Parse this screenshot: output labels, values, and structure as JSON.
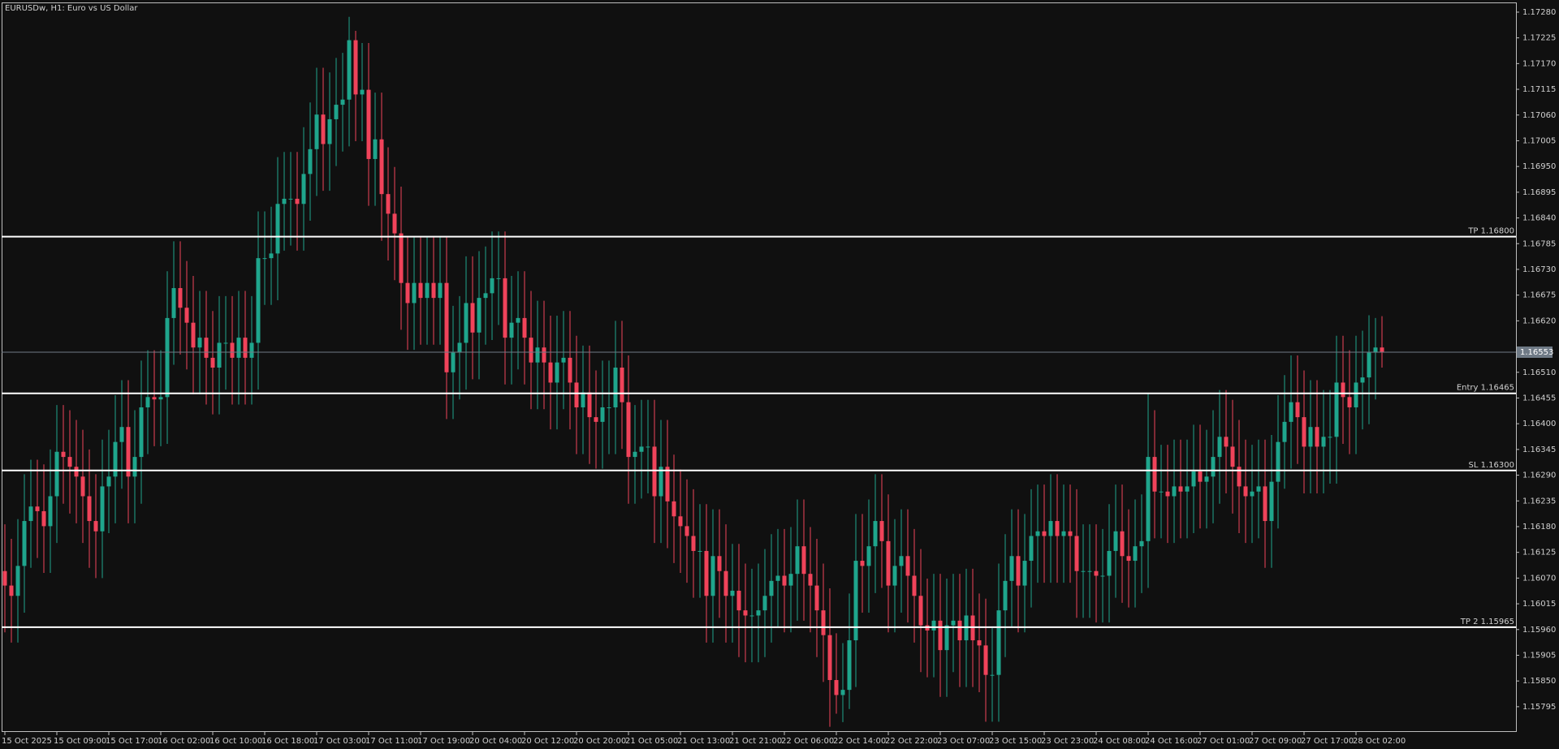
{
  "chart_data": {
    "type": "candlestick",
    "title": "EURUSDw, H1:  Euro vs US Dollar",
    "up_color": "#1fa58c",
    "down_color": "#f0435a",
    "categories": [
      "15 Oct 2025",
      null,
      null,
      null,
      null,
      null,
      null,
      null,
      "15 Oct 09:00",
      null,
      null,
      null,
      null,
      null,
      null,
      null,
      "15 Oct 17:00",
      null,
      null,
      null,
      null,
      null,
      null,
      null,
      "16 Oct 02:00",
      null,
      null,
      null,
      null,
      null,
      null,
      null,
      "16 Oct 10:00",
      null,
      null,
      null,
      null,
      null,
      null,
      null,
      "16 Oct 18:00",
      null,
      null,
      null,
      null,
      null,
      null,
      null,
      "17 Oct 03:00",
      null,
      null,
      null,
      null,
      null,
      null,
      null,
      "17 Oct 11:00",
      null,
      null,
      null,
      null,
      null,
      null,
      null,
      "17 Oct 19:00",
      null,
      null,
      null,
      null,
      null,
      null,
      null,
      "20 Oct 04:00",
      null,
      null,
      null,
      null,
      null,
      null,
      null,
      "20 Oct 12:00",
      null,
      null,
      null,
      null,
      null,
      null,
      null,
      "20 Oct 20:00",
      null,
      null,
      null,
      null,
      null,
      null,
      null,
      "21 Oct 05:00",
      null,
      null,
      null,
      null,
      null,
      null,
      null,
      "21 Oct 13:00",
      null,
      null,
      null,
      null,
      null,
      null,
      null,
      "21 Oct 21:00",
      null,
      null,
      null,
      null,
      null,
      null,
      null,
      "22 Oct 06:00",
      null,
      null,
      null,
      null,
      null,
      null,
      null,
      "22 Oct 14:00",
      null,
      null,
      null,
      null,
      null,
      null,
      null,
      "22 Oct 22:00",
      null,
      null,
      null,
      null,
      null,
      null,
      null,
      "23 Oct 07:00",
      null,
      null,
      null,
      null,
      null,
      null,
      null,
      "23 Oct 15:00",
      null,
      null,
      null,
      null,
      null,
      null,
      null,
      "23 Oct 23:00",
      null,
      null,
      null,
      null,
      null,
      null,
      null,
      "24 Oct 08:00",
      null,
      null,
      null,
      null,
      null,
      null,
      null,
      "24 Oct 16:00",
      null,
      null,
      null,
      null,
      null,
      null,
      null,
      "27 Oct 01:00",
      null,
      null,
      null,
      null,
      null,
      null,
      null,
      "27 Oct 09:00",
      null,
      null,
      null,
      null,
      null,
      null,
      null,
      "27 Oct 17:00",
      null,
      null,
      null,
      null,
      null,
      null,
      null,
      "28 Oct 02:00",
      null,
      null,
      null,
      null
    ],
    "open": [
      1.16085,
      1.16054,
      1.16032,
      1.16096,
      1.16192,
      1.16223,
      1.16213,
      1.16181,
      1.16245,
      1.1634,
      1.16329,
      1.16308,
      1.16287,
      1.16245,
      1.16192,
      1.1617,
      1.16266,
      1.16287,
      1.16361,
      1.16393,
      1.16287,
      1.16329,
      1.16435,
      1.16457,
      1.16452,
      1.16457,
      1.16626,
      1.1669,
      1.16648,
      1.16616,
      1.16563,
      1.16584,
      1.16541,
      1.1652,
      1.16573,
      1.16573,
      1.16541,
      1.16584,
      1.16541,
      1.16573,
      1.16754,
      1.16754,
      1.16764,
      1.1687,
      1.16881,
      1.16881,
      1.1687,
      1.16934,
      1.16987,
      1.17061,
      1.16998,
      1.17051,
      1.17082,
      1.17093,
      1.1722,
      1.17104,
      1.17114,
      1.16966,
      1.17008,
      1.16891,
      1.16849,
      1.16807,
      1.16701,
      1.16658,
      1.16701,
      1.16669,
      1.16701,
      1.16669,
      1.16701,
      1.1651,
      1.16552,
      1.16573,
      1.16658,
      1.16595,
      1.16669,
      1.16679,
      1.16711,
      1.16711,
      1.16584,
      1.16616,
      1.16626,
      1.16584,
      1.16531,
      1.16563,
      1.16531,
      1.16488,
      1.16531,
      1.16541,
      1.16488,
      1.16435,
      1.16467,
      1.16414,
      1.16404,
      1.16435,
      1.16435,
      1.1652,
      1.16446,
      1.16329,
      1.1634,
      1.16351,
      1.16351,
      1.16245,
      1.16308,
      1.16234,
      1.16202,
      1.16181,
      1.1616,
      1.16128,
      1.16128,
      1.16032,
      1.16117,
      1.16085,
      1.16032,
      1.16043,
      1.16001,
      1.1599,
      1.1599,
      1.16001,
      1.16032,
      1.16064,
      1.16075,
      1.16054,
      1.16079,
      1.16138,
      1.16079,
      1.16054,
      1.16001,
      1.15948,
      1.15852,
      1.1582,
      1.15831,
      1.15937,
      1.16107,
      1.16096,
      1.16138,
      1.16192,
      1.16149,
      1.16054,
      1.16096,
      1.16117,
      1.16075,
      1.16032,
      1.15969,
      1.15958,
      1.15979,
      1.15916,
      1.15969,
      1.15979,
      1.15937,
      1.1599,
      1.15937,
      1.15926,
      1.15863,
      1.15863,
      1.16001,
      1.16064,
      1.16117,
      1.16054,
      1.16107,
      1.1616,
      1.1617,
      1.1616,
      1.16192,
      1.1616,
      1.1617,
      1.1616,
      1.16085,
      1.16085,
      1.16085,
      1.16075,
      1.16075,
      1.16128,
      1.1617,
      1.16117,
      1.16107,
      1.16138,
      1.16149,
      1.16329,
      1.16255,
      1.16255,
      1.16245,
      1.16266,
      1.16255,
      1.16266,
      1.16298,
      1.16276,
      1.16287,
      1.16329,
      1.16372,
      1.16351,
      1.16308,
      1.16266,
      1.16245,
      1.16255,
      1.16266,
      1.16192,
      1.16276,
      1.16361,
      1.16404,
      1.16446,
      1.16414,
      1.16351,
      1.16393,
      1.16351,
      1.16372,
      1.16372,
      1.16488,
      1.16457,
      1.16435,
      1.16488,
      1.16499,
      1.16552,
      1.16563
    ],
    "high": [
      1.16185,
      1.16154,
      1.16196,
      1.16292,
      1.16323,
      1.16323,
      1.16313,
      1.16345,
      1.1644,
      1.1644,
      1.16429,
      1.16408,
      1.16387,
      1.16345,
      1.16292,
      1.16366,
      1.16387,
      1.16461,
      1.16493,
      1.16493,
      1.16429,
      1.16535,
      1.16557,
      1.16557,
      1.16557,
      1.16726,
      1.1679,
      1.1679,
      1.16748,
      1.16716,
      1.16684,
      1.16684,
      1.16641,
      1.16673,
      1.16673,
      1.16673,
      1.16684,
      1.16684,
      1.16673,
      1.16854,
      1.16854,
      1.16864,
      1.1697,
      1.16981,
      1.16981,
      1.16981,
      1.17034,
      1.17087,
      1.17161,
      1.17161,
      1.17151,
      1.17182,
      1.17193,
      1.1727,
      1.1724,
      1.17214,
      1.17214,
      1.17108,
      1.17108,
      1.16991,
      1.16949,
      1.16907,
      1.16801,
      1.16801,
      1.16801,
      1.16801,
      1.16801,
      1.16801,
      1.16801,
      1.16652,
      1.16673,
      1.16758,
      1.16758,
      1.16769,
      1.16779,
      1.16811,
      1.16811,
      1.16811,
      1.16716,
      1.16726,
      1.16726,
      1.16684,
      1.16663,
      1.16663,
      1.16631,
      1.16631,
      1.16641,
      1.16641,
      1.16588,
      1.16567,
      1.16567,
      1.16514,
      1.16535,
      1.16535,
      1.1662,
      1.1662,
      1.16546,
      1.1644,
      1.16451,
      1.16451,
      1.16451,
      1.16408,
      1.16408,
      1.16334,
      1.16302,
      1.16281,
      1.1626,
      1.16228,
      1.16228,
      1.16217,
      1.16217,
      1.16185,
      1.16143,
      1.16143,
      1.16101,
      1.1609,
      1.16101,
      1.16132,
      1.16164,
      1.16175,
      1.16175,
      1.16179,
      1.16238,
      1.16238,
      1.16179,
      1.16154,
      1.16101,
      1.16048,
      1.15952,
      1.15931,
      1.16037,
      1.16207,
      1.16207,
      1.16238,
      1.16292,
      1.16292,
      1.16249,
      1.16196,
      1.16217,
      1.16217,
      1.16175,
      1.16132,
      1.16069,
      1.16079,
      1.16079,
      1.16069,
      1.16079,
      1.16079,
      1.1609,
      1.1609,
      1.16037,
      1.16026,
      1.15963,
      1.16101,
      1.16164,
      1.16217,
      1.16217,
      1.16207,
      1.1626,
      1.1627,
      1.1627,
      1.16292,
      1.16292,
      1.1627,
      1.1627,
      1.1626,
      1.16185,
      1.16185,
      1.16185,
      1.16175,
      1.16228,
      1.1627,
      1.1627,
      1.16217,
      1.16238,
      1.16249,
      1.16465,
      1.16429,
      1.16355,
      1.16355,
      1.16366,
      1.16366,
      1.16366,
      1.16398,
      1.16398,
      1.16387,
      1.16429,
      1.16472,
      1.16472,
      1.16451,
      1.16408,
      1.16366,
      1.16355,
      1.16366,
      1.16366,
      1.16376,
      1.16461,
      1.16504,
      1.16546,
      1.16546,
      1.16514,
      1.16493,
      1.16493,
      1.16472,
      1.16472,
      1.16588,
      1.16588,
      1.16557,
      1.16588,
      1.16599,
      1.16632,
      1.16626,
      1.1663
    ],
    "low": [
      1.15954,
      1.15932,
      1.15932,
      1.15996,
      1.16092,
      1.16113,
      1.16081,
      1.16081,
      1.16145,
      1.16229,
      1.16208,
      1.16187,
      1.16145,
      1.16092,
      1.1607,
      1.1607,
      1.16166,
      1.16187,
      1.16261,
      1.16187,
      1.16187,
      1.16229,
      1.16335,
      1.16352,
      1.16352,
      1.16357,
      1.16526,
      1.16548,
      1.16516,
      1.16463,
      1.16463,
      1.16441,
      1.1642,
      1.1642,
      1.16473,
      1.16441,
      1.16441,
      1.16441,
      1.16441,
      1.16473,
      1.16654,
      1.16654,
      1.16664,
      1.1677,
      1.16781,
      1.1677,
      1.1677,
      1.16834,
      1.16887,
      1.16898,
      1.16898,
      1.16951,
      1.16982,
      1.16993,
      1.17004,
      1.17004,
      1.16866,
      1.16866,
      1.16791,
      1.16749,
      1.16707,
      1.16601,
      1.16558,
      1.16558,
      1.16569,
      1.16569,
      1.16569,
      1.16569,
      1.1641,
      1.1641,
      1.16452,
      1.16473,
      1.16495,
      1.16495,
      1.16569,
      1.16579,
      1.16611,
      1.16484,
      1.16484,
      1.16516,
      1.16484,
      1.16431,
      1.16431,
      1.16431,
      1.16388,
      1.16388,
      1.16431,
      1.16388,
      1.16335,
      1.16335,
      1.16314,
      1.16304,
      1.16304,
      1.16335,
      1.16335,
      1.16346,
      1.16229,
      1.16229,
      1.1624,
      1.16251,
      1.16145,
      1.16145,
      1.16134,
      1.16102,
      1.16081,
      1.1606,
      1.16028,
      1.16028,
      1.15932,
      1.15932,
      1.15985,
      1.15932,
      1.15932,
      1.15901,
      1.1589,
      1.1589,
      1.1589,
      1.15901,
      1.15932,
      1.15964,
      1.15954,
      1.15954,
      1.15979,
      1.15979,
      1.15954,
      1.15901,
      1.15848,
      1.15752,
      1.1578,
      1.15762,
      1.1579,
      1.15837,
      1.15996,
      1.15996,
      1.16038,
      1.16049,
      1.15954,
      1.15954,
      1.15996,
      1.15975,
      1.15932,
      1.15869,
      1.15858,
      1.15858,
      1.15816,
      1.15816,
      1.15869,
      1.15837,
      1.15837,
      1.15837,
      1.15826,
      1.15763,
      1.15763,
      1.15763,
      1.15901,
      1.15964,
      1.15954,
      1.15954,
      1.16007,
      1.1606,
      1.1606,
      1.1606,
      1.1606,
      1.1606,
      1.1606,
      1.15985,
      1.15985,
      1.15985,
      1.15975,
      1.15975,
      1.15975,
      1.16028,
      1.16017,
      1.16007,
      1.16007,
      1.16038,
      1.16049,
      1.16155,
      1.16155,
      1.16145,
      1.16145,
      1.16155,
      1.16155,
      1.16166,
      1.16176,
      1.16176,
      1.16187,
      1.16229,
      1.16251,
      1.16208,
      1.16166,
      1.16145,
      1.16145,
      1.16155,
      1.16092,
      1.16092,
      1.16176,
      1.16261,
      1.16304,
      1.16314,
      1.16251,
      1.16251,
      1.16251,
      1.16251,
      1.16272,
      1.16272,
      1.16357,
      1.16335,
      1.16335,
      1.16388,
      1.16399,
      1.16452,
      1.1652
    ],
    "close": [
      1.16054,
      1.16032,
      1.16096,
      1.16192,
      1.16223,
      1.16213,
      1.16181,
      1.16245,
      1.1634,
      1.16329,
      1.16308,
      1.16287,
      1.16245,
      1.16192,
      1.1617,
      1.16266,
      1.16287,
      1.16361,
      1.16393,
      1.16287,
      1.16329,
      1.16435,
      1.16457,
      1.16452,
      1.16457,
      1.16626,
      1.1669,
      1.16648,
      1.16616,
      1.16563,
      1.16584,
      1.16541,
      1.1652,
      1.16573,
      1.16573,
      1.16541,
      1.16584,
      1.16541,
      1.16573,
      1.16754,
      1.16754,
      1.16764,
      1.1687,
      1.16881,
      1.16881,
      1.1687,
      1.16934,
      1.16987,
      1.17061,
      1.16998,
      1.17051,
      1.17082,
      1.17093,
      1.1722,
      1.17104,
      1.17114,
      1.16966,
      1.17008,
      1.16891,
      1.16849,
      1.16807,
      1.16701,
      1.16658,
      1.16701,
      1.16669,
      1.16701,
      1.16669,
      1.16701,
      1.1651,
      1.16552,
      1.16573,
      1.16658,
      1.16595,
      1.16669,
      1.16679,
      1.16711,
      1.16711,
      1.16584,
      1.16616,
      1.16626,
      1.16584,
      1.16531,
      1.16563,
      1.16531,
      1.16488,
      1.16531,
      1.16541,
      1.16488,
      1.16435,
      1.16467,
      1.16414,
      1.16404,
      1.16435,
      1.16435,
      1.1652,
      1.16446,
      1.16329,
      1.1634,
      1.16351,
      1.16351,
      1.16245,
      1.16308,
      1.16234,
      1.16202,
      1.16181,
      1.1616,
      1.16128,
      1.16128,
      1.16032,
      1.16117,
      1.16085,
      1.16032,
      1.16043,
      1.16001,
      1.1599,
      1.1599,
      1.16001,
      1.16032,
      1.16064,
      1.16075,
      1.16054,
      1.16079,
      1.16138,
      1.16079,
      1.16054,
      1.16001,
      1.15948,
      1.15852,
      1.1582,
      1.15831,
      1.15937,
      1.16107,
      1.16096,
      1.16138,
      1.16192,
      1.16149,
      1.16054,
      1.16096,
      1.16117,
      1.16075,
      1.16032,
      1.15969,
      1.15958,
      1.15979,
      1.15916,
      1.15969,
      1.15979,
      1.15937,
      1.1599,
      1.15937,
      1.15926,
      1.15863,
      1.15863,
      1.16001,
      1.16064,
      1.16117,
      1.16054,
      1.16107,
      1.1616,
      1.1617,
      1.1616,
      1.16192,
      1.1616,
      1.1617,
      1.1616,
      1.16085,
      1.16085,
      1.16085,
      1.16075,
      1.16075,
      1.16128,
      1.1617,
      1.16117,
      1.16107,
      1.16138,
      1.16149,
      1.16329,
      1.16255,
      1.16255,
      1.16245,
      1.16266,
      1.16255,
      1.16266,
      1.16298,
      1.16276,
      1.16287,
      1.16329,
      1.16372,
      1.16351,
      1.16308,
      1.16266,
      1.16245,
      1.16255,
      1.16266,
      1.16192,
      1.16276,
      1.16361,
      1.16404,
      1.16446,
      1.16414,
      1.16351,
      1.16393,
      1.16351,
      1.16372,
      1.16372,
      1.16488,
      1.16457,
      1.16435,
      1.16488,
      1.16499,
      1.16552,
      1.16563,
      1.16553
    ],
    "ylim": [
      1.15741,
      1.17299
    ],
    "yticks": [
      1.15795,
      {
        "value": 1.1585,
        "label": "1.15850"
      },
      1.15905,
      {
        "value": 1.1596,
        "label": "1.15960"
      },
      1.16015,
      {
        "value": 1.1607,
        "label": "1.16070"
      },
      1.16125,
      {
        "value": 1.1618,
        "label": "1.16180"
      },
      1.16235,
      {
        "value": 1.1629,
        "label": "1.16290"
      },
      1.16345,
      {
        "value": 1.164,
        "label": "1.16400"
      },
      1.16455,
      {
        "value": 1.1651,
        "label": "1.16510"
      },
      {
        "value": 1.1662,
        "label": "1.16620"
      },
      1.16675,
      {
        "value": 1.1673,
        "label": "1.16730"
      },
      1.16785,
      {
        "value": 1.1684,
        "label": "1.16840"
      },
      1.16895,
      {
        "value": 1.1695,
        "label": "1.16950"
      },
      1.17005,
      {
        "value": 1.1706,
        "label": "1.17060"
      },
      1.17115,
      {
        "value": 1.1717,
        "label": "1.17170"
      },
      1.17225,
      {
        "value": 1.1728,
        "label": "1.17280"
      }
    ],
    "levels": [
      {
        "label": "TP 1.16800",
        "value": 1.168,
        "color": "#ffffff"
      },
      {
        "label": "Entry 1.16465",
        "value": 1.16465,
        "color": "#ffffff"
      },
      {
        "label": "SL 1.16300",
        "value": 1.163,
        "color": "#ffffff"
      },
      {
        "label": "TP 2 1.15965",
        "value": 1.15965,
        "color": "#ffffff"
      }
    ],
    "current_price": {
      "value": 1.16553,
      "color": "#6f7a86"
    }
  }
}
